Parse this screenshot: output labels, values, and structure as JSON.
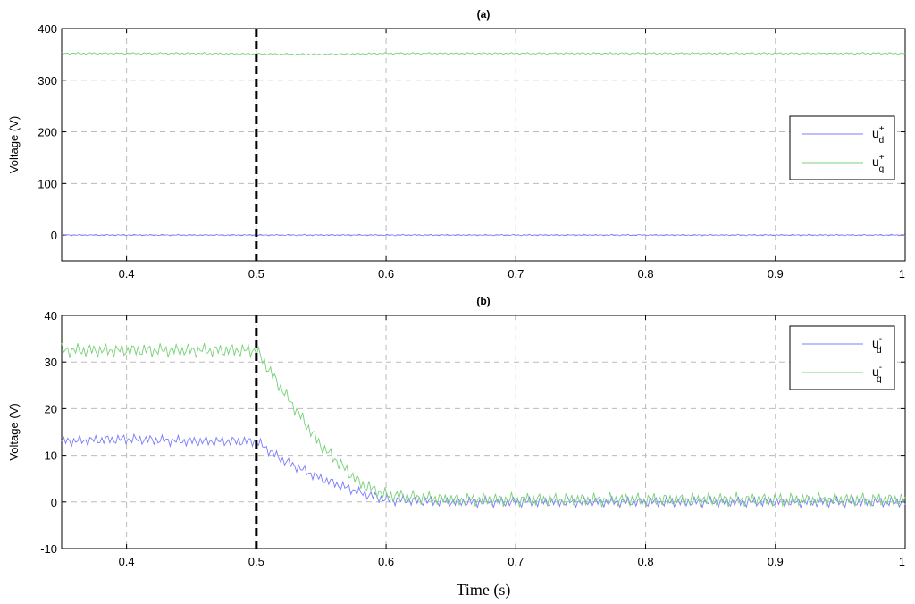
{
  "chart_data": [
    {
      "type": "line",
      "title": "(a)",
      "ylabel": "Voltage (V)",
      "xlabel": "",
      "xlim": [
        0.35,
        1.0
      ],
      "ylim": [
        -50,
        400
      ],
      "xticks": [
        0.4,
        0.5,
        0.6,
        0.7,
        0.8,
        0.9,
        1.0
      ],
      "xtick_labels": [
        "0.4",
        "0.5",
        "0.6",
        "0.7",
        "0.8",
        "0.9",
        "1"
      ],
      "yticks": [
        0,
        100,
        200,
        300,
        400
      ],
      "ytick_labels": [
        "0",
        "100",
        "200",
        "300",
        "400"
      ],
      "grid": true,
      "legend_position": "center-right",
      "vline": {
        "x": 0.5,
        "style": "dashed",
        "color": "#000000"
      },
      "series": [
        {
          "name_base": "u",
          "name_sup": "+",
          "name_sub": "d",
          "color": "#7b7bff",
          "x": [
            0.35,
            0.45,
            0.5,
            0.55,
            0.6,
            0.7,
            0.8,
            0.9,
            1.0
          ],
          "values": [
            0,
            0,
            0,
            0,
            0,
            0,
            0,
            0,
            0
          ],
          "ripple": 1.5
        },
        {
          "name_base": "u",
          "name_sup": "+",
          "name_sub": "q",
          "color": "#78d078",
          "x": [
            0.35,
            0.45,
            0.5,
            0.55,
            0.6,
            0.7,
            0.8,
            0.9,
            1.0
          ],
          "values": [
            352,
            352,
            351,
            350,
            352,
            352,
            352,
            352,
            352
          ],
          "ripple": 2
        }
      ]
    },
    {
      "type": "line",
      "title": "(b)",
      "ylabel": "Voltage (V)",
      "xlabel": "Time (s)",
      "xlim": [
        0.35,
        1.0
      ],
      "ylim": [
        -10,
        40
      ],
      "xticks": [
        0.4,
        0.5,
        0.6,
        0.7,
        0.8,
        0.9,
        1.0
      ],
      "xtick_labels": [
        "0.4",
        "0.5",
        "0.6",
        "0.7",
        "0.8",
        "0.9",
        "1"
      ],
      "yticks": [
        -10,
        0,
        10,
        20,
        30,
        40
      ],
      "ytick_labels": [
        "-10",
        "0",
        "10",
        "20",
        "30",
        "40"
      ],
      "grid": true,
      "legend_position": "top-right",
      "vline": {
        "x": 0.5,
        "style": "dashed",
        "color": "#000000"
      },
      "series": [
        {
          "name_base": "u",
          "name_sup": "-",
          "name_sub": "d",
          "color": "#7b7bff",
          "x": [
            0.35,
            0.4,
            0.45,
            0.5,
            0.52,
            0.55,
            0.58,
            0.6,
            0.65,
            0.7,
            0.8,
            0.9,
            1.0
          ],
          "values": [
            13,
            13.5,
            13,
            13,
            9,
            5,
            2,
            0.5,
            0,
            0,
            0,
            0,
            0
          ],
          "ripple": 1.2
        },
        {
          "name_base": "u",
          "name_sup": "-",
          "name_sub": "q",
          "color": "#78d078",
          "x": [
            0.35,
            0.4,
            0.45,
            0.5,
            0.52,
            0.55,
            0.58,
            0.6,
            0.65,
            0.7,
            0.8,
            0.9,
            1.0
          ],
          "values": [
            32.5,
            32.5,
            32.5,
            32.5,
            24,
            12,
            4,
            1.5,
            0.5,
            0.5,
            0.5,
            0.5,
            0.5
          ],
          "ripple": 1.6
        }
      ]
    }
  ]
}
